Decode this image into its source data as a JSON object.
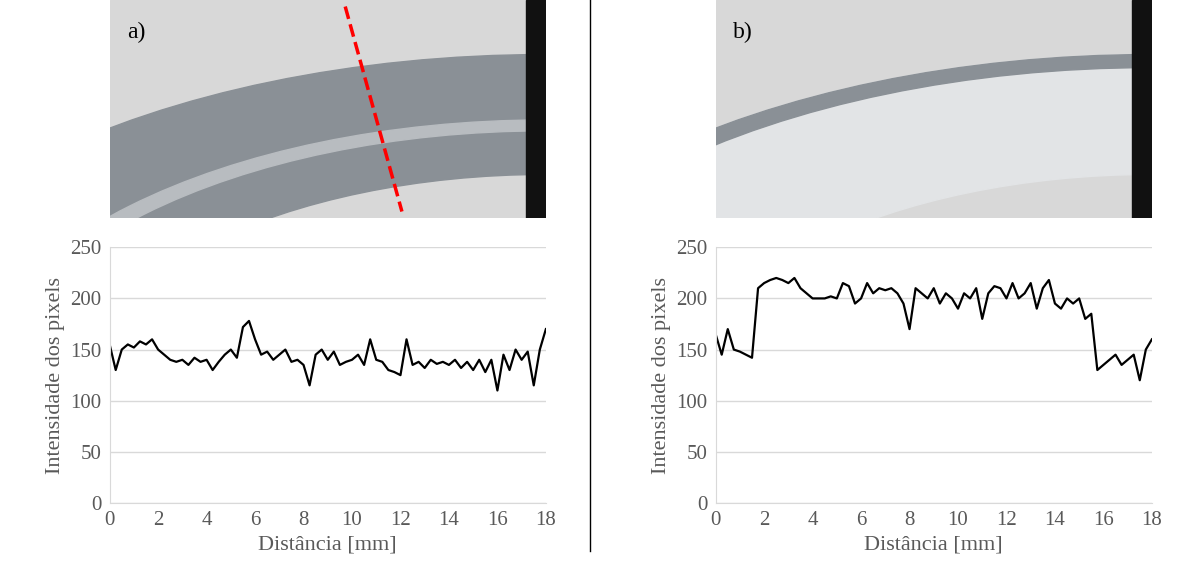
{
  "chart_data": [
    {
      "type": "line",
      "annotation": "a)",
      "x_label": "Distância [mm]",
      "y_label": "Intensidade dos pixels",
      "x": [
        0,
        0.25,
        0.5,
        0.75,
        1,
        1.25,
        1.5,
        1.75,
        2,
        2.25,
        2.5,
        2.75,
        3,
        3.25,
        3.5,
        3.75,
        4,
        4.25,
        4.5,
        4.75,
        5,
        5.25,
        5.5,
        5.75,
        6,
        6.25,
        6.5,
        6.75,
        7,
        7.25,
        7.5,
        7.75,
        8,
        8.25,
        8.5,
        8.75,
        9,
        9.25,
        9.5,
        9.75,
        10,
        10.25,
        10.5,
        10.75,
        11,
        11.25,
        11.5,
        11.75,
        12,
        12.25,
        12.5,
        12.75,
        13,
        13.25,
        13.5,
        13.75,
        14,
        14.25,
        14.5,
        14.75,
        15,
        15.25,
        15.5,
        15.75,
        16,
        16.25,
        16.5,
        16.75,
        17,
        17.25,
        17.5,
        17.75,
        18
      ],
      "series": [
        {
          "color": "#000000",
          "values": [
            155,
            130,
            150,
            155,
            152,
            158,
            155,
            160,
            150,
            145,
            140,
            138,
            140,
            135,
            142,
            138,
            140,
            130,
            138,
            145,
            150,
            142,
            172,
            178,
            160,
            145,
            148,
            140,
            145,
            150,
            138,
            140,
            135,
            115,
            145,
            150,
            140,
            148,
            135,
            138,
            140,
            145,
            135,
            160,
            140,
            138,
            130,
            128,
            125,
            160,
            135,
            138,
            132,
            140,
            136,
            138,
            135,
            140,
            132,
            138,
            130,
            140,
            128,
            140,
            110,
            145,
            130,
            150,
            140,
            148,
            115,
            150,
            170
          ]
        }
      ],
      "xlim": [
        0,
        18
      ],
      "xticks": [
        0,
        2,
        4,
        6,
        8,
        10,
        12,
        14,
        16,
        18
      ],
      "ylim": [
        0,
        250
      ],
      "yticks": [
        0,
        50,
        100,
        150,
        200,
        250
      ],
      "grid": true
    },
    {
      "type": "line",
      "annotation": "b)",
      "x_label": "Distância [mm]",
      "y_label": "Intensidade dos pixels",
      "x": [
        0,
        0.25,
        0.5,
        0.75,
        1,
        1.25,
        1.5,
        1.75,
        2,
        2.25,
        2.5,
        2.75,
        3,
        3.25,
        3.5,
        3.75,
        4,
        4.25,
        4.5,
        4.75,
        5,
        5.25,
        5.5,
        5.75,
        6,
        6.25,
        6.5,
        6.75,
        7,
        7.25,
        7.5,
        7.75,
        8,
        8.25,
        8.5,
        8.75,
        9,
        9.25,
        9.5,
        9.75,
        10,
        10.25,
        10.5,
        10.75,
        11,
        11.25,
        11.5,
        11.75,
        12,
        12.25,
        12.5,
        12.75,
        13,
        13.25,
        13.5,
        13.75,
        14,
        14.25,
        14.5,
        14.75,
        15,
        15.25,
        15.5,
        15.75,
        16,
        16.25,
        16.5,
        16.75,
        17,
        17.25,
        17.5,
        17.75,
        18
      ],
      "series": [
        {
          "color": "#000000",
          "values": [
            165,
            145,
            170,
            150,
            148,
            145,
            142,
            210,
            215,
            218,
            220,
            218,
            215,
            220,
            210,
            205,
            200,
            200,
            200,
            202,
            200,
            215,
            212,
            195,
            200,
            215,
            205,
            210,
            208,
            210,
            205,
            195,
            170,
            210,
            205,
            200,
            210,
            195,
            205,
            200,
            190,
            205,
            200,
            210,
            180,
            205,
            212,
            210,
            200,
            215,
            200,
            205,
            215,
            190,
            210,
            218,
            195,
            190,
            200,
            195,
            200,
            180,
            185,
            130,
            135,
            140,
            145,
            135,
            140,
            145,
            120,
            150,
            160
          ]
        }
      ],
      "xlim": [
        0,
        18
      ],
      "xticks": [
        0,
        2,
        4,
        6,
        8,
        10,
        12,
        14,
        16,
        18
      ],
      "ylim": [
        0,
        250
      ],
      "yticks": [
        0,
        50,
        100,
        150,
        200,
        250
      ],
      "grid": true
    }
  ]
}
